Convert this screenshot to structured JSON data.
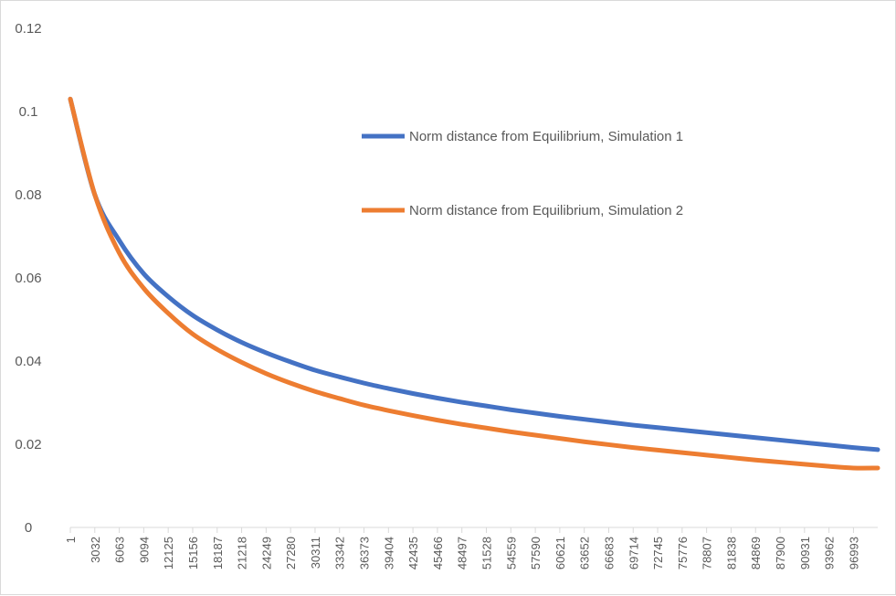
{
  "chart_data": {
    "type": "line",
    "title": "",
    "xlabel": "",
    "ylabel": "",
    "ylim": [
      0,
      0.12
    ],
    "y_ticks": [
      "0",
      "0.02",
      "0.04",
      "0.06",
      "0.08",
      "0.1",
      "0.12"
    ],
    "x_range": [
      1,
      100000
    ],
    "x_tick_labels": [
      "1",
      "3032",
      "6063",
      "9094",
      "12125",
      "15156",
      "18187",
      "21218",
      "24249",
      "27280",
      "30311",
      "33342",
      "36373",
      "39404",
      "42435",
      "45466",
      "48497",
      "51528",
      "54559",
      "57590",
      "60621",
      "63652",
      "66683",
      "69714",
      "72745",
      "75776",
      "78807",
      "81838",
      "84869",
      "87900",
      "90931",
      "93962",
      "96993"
    ],
    "grid": false,
    "legend_position": "top-right",
    "series": [
      {
        "name": "Norm distance from Equilibrium, Simulation 1",
        "color": "#4472C4",
        "x": [
          1,
          3032,
          6063,
          9094,
          12125,
          15156,
          18187,
          21218,
          24249,
          27280,
          30311,
          33342,
          36373,
          39404,
          42435,
          45466,
          48497,
          51528,
          54559,
          57590,
          60621,
          63652,
          66683,
          69714,
          72745,
          75776,
          78807,
          81838,
          84869,
          87900,
          90931,
          93962,
          96993,
          100000
        ],
        "values": [
          0.103,
          0.08,
          0.069,
          0.061,
          0.0555,
          0.051,
          0.0475,
          0.0445,
          0.042,
          0.0398,
          0.0378,
          0.0362,
          0.0347,
          0.0334,
          0.0322,
          0.0311,
          0.0301,
          0.0292,
          0.0283,
          0.0275,
          0.0267,
          0.026,
          0.0253,
          0.0246,
          0.024,
          0.0234,
          0.0228,
          0.0222,
          0.0216,
          0.021,
          0.0204,
          0.0198,
          0.0192,
          0.0187
        ]
      },
      {
        "name": "Norm distance from Equilibrium, Simulation 2",
        "color": "#ED7D31",
        "x": [
          1,
          3032,
          6063,
          9094,
          12125,
          15156,
          18187,
          21218,
          24249,
          27280,
          30311,
          33342,
          36373,
          39404,
          42435,
          45466,
          48497,
          51528,
          54559,
          57590,
          60621,
          63652,
          66683,
          69714,
          72745,
          75776,
          78807,
          81838,
          84869,
          87900,
          90931,
          93962,
          96993,
          100000
        ],
        "values": [
          0.103,
          0.08,
          0.066,
          0.0575,
          0.0515,
          0.0465,
          0.0428,
          0.0397,
          0.037,
          0.0347,
          0.0327,
          0.031,
          0.0294,
          0.0281,
          0.0269,
          0.0258,
          0.0248,
          0.0239,
          0.023,
          0.0222,
          0.0214,
          0.0206,
          0.0199,
          0.0192,
          0.0186,
          0.018,
          0.0174,
          0.0168,
          0.0162,
          0.0157,
          0.0152,
          0.0147,
          0.0143,
          0.0143
        ]
      }
    ]
  }
}
